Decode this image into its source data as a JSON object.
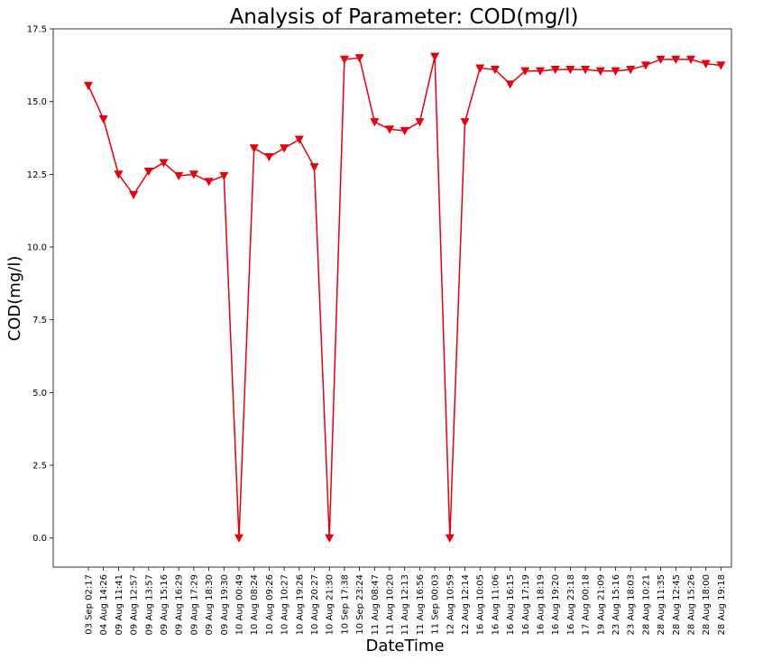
{
  "chart_data": {
    "type": "line",
    "title": "Analysis of Parameter: COD(mg/l)",
    "xlabel": "DateTime",
    "ylabel": "COD(mg/l)",
    "ylim": [
      -1.0,
      17.5
    ],
    "yticks": [
      0.0,
      2.5,
      5.0,
      7.5,
      10.0,
      12.5,
      15.0,
      17.5
    ],
    "ytick_labels": [
      "0.0",
      "2.5",
      "5.0",
      "7.5",
      "10.0",
      "12.5",
      "15.0",
      "17.5"
    ],
    "grid": false,
    "marker": "triangle-down",
    "color": "#e8000b",
    "categories": [
      "03 Sep 02:17",
      "04 Aug 14:26",
      "09 Aug 11:41",
      "09 Aug 12:57",
      "09 Aug 13:57",
      "09 Aug 15:16",
      "09 Aug 16:29",
      "09 Aug 17:29",
      "09 Aug 18:30",
      "09 Aug 19:30",
      "10 Aug 00:49",
      "10 Aug 08:24",
      "10 Aug 09:26",
      "10 Aug 10:27",
      "10 Aug 19:26",
      "10 Aug 20:27",
      "10 Aug 21:30",
      "10 Sep 17:38",
      "10 Sep 23:24",
      "11 Aug 08:47",
      "11 Aug 10:20",
      "11 Aug 12:13",
      "11 Aug 16:56",
      "11 Sep 00:03",
      "12 Aug 10:59",
      "12 Aug 12:14",
      "16 Aug 10:05",
      "16 Aug 11:06",
      "16 Aug 16:15",
      "16 Aug 17:19",
      "16 Aug 18:19",
      "16 Aug 19:20",
      "16 Aug 23:18",
      "17 Aug 00:18",
      "19 Aug 21:09",
      "23 Aug 15:16",
      "23 Aug 18:03",
      "28 Aug 10:21",
      "28 Aug 11:35",
      "28 Aug 12:45",
      "28 Aug 15:26",
      "28 Aug 18:00",
      "28 Aug 19:18"
    ],
    "values": [
      15.55,
      14.4,
      12.5,
      11.8,
      12.6,
      12.9,
      12.45,
      12.5,
      12.25,
      12.45,
      0.0,
      13.4,
      13.1,
      13.4,
      13.7,
      12.75,
      0.0,
      16.45,
      16.5,
      14.3,
      14.05,
      14.0,
      14.3,
      16.55,
      0.0,
      14.3,
      16.15,
      16.1,
      15.6,
      16.05,
      16.05,
      16.1,
      16.1,
      16.1,
      16.05,
      16.05,
      16.1,
      16.25,
      16.45,
      16.45,
      16.45,
      16.3,
      16.25
    ]
  }
}
